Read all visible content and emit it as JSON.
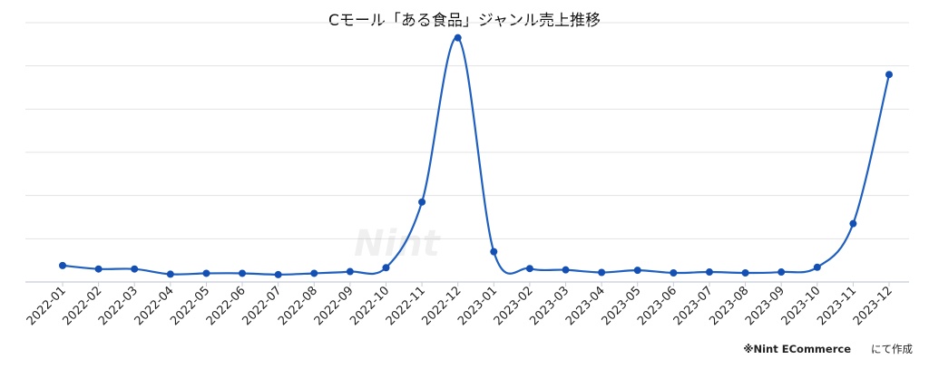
{
  "chart_data": {
    "type": "line",
    "title": "Cモール「ある食品」ジャンル売上推移",
    "xlabel": "",
    "ylabel": "",
    "grid": true,
    "categories": [
      "2022-01",
      "2022-02",
      "2022-03",
      "2022-04",
      "2022-05",
      "2022-06",
      "2022-07",
      "2022-08",
      "2022-09",
      "2022-10",
      "2022-11",
      "2022-12",
      "2023-01",
      "2023-02",
      "2023-03",
      "2023-04",
      "2023-05",
      "2023-06",
      "2023-07",
      "2023-08",
      "2023-09",
      "2023-10",
      "2023-11",
      "2023-12"
    ],
    "values": [
      3.8,
      3.0,
      3.0,
      1.8,
      2.0,
      2.0,
      1.7,
      2.0,
      2.4,
      3.3,
      18.5,
      56.5,
      7.0,
      3.1,
      2.8,
      2.2,
      2.7,
      2.1,
      2.3,
      2.1,
      2.3,
      3.4,
      13.5,
      48.0
    ],
    "ylim": [
      0,
      60
    ],
    "line_color": "#1f5fbf",
    "point_color": "#1450b4"
  },
  "watermark": {
    "text": "Nint"
  },
  "credit": {
    "brand": "※Nint ECommerce",
    "suffix": "にて作成"
  }
}
